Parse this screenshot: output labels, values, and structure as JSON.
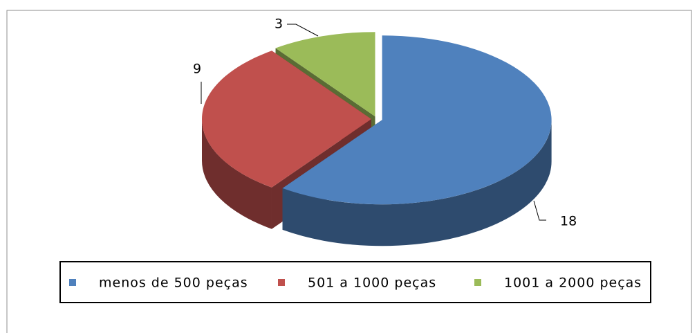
{
  "chart_data": {
    "type": "pie",
    "categories": [
      "menos de 500 peças",
      "501 a 1000 peças",
      "1001 a 2000 peças"
    ],
    "values": [
      18,
      9,
      3
    ],
    "colors": [
      "#4f81bd",
      "#c0504d",
      "#9bbb59"
    ],
    "legend": "bottom"
  }
}
